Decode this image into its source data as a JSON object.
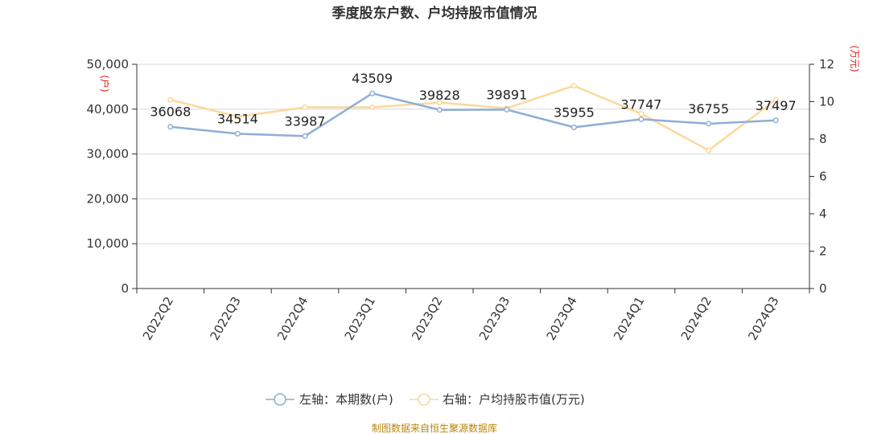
{
  "chart_data": {
    "type": "line",
    "title": "季度股东户数、户均持股市值情况",
    "categories": [
      "2022Q2",
      "2022Q3",
      "2022Q4",
      "2023Q1",
      "2023Q2",
      "2023Q3",
      "2023Q4",
      "2024Q1",
      "2024Q2",
      "2024Q3"
    ],
    "y_left": {
      "unit": "(户)",
      "ylim": [
        0,
        50000
      ],
      "ticks": [
        "0",
        "10,000",
        "20,000",
        "30,000",
        "40,000",
        "50,000"
      ],
      "tick_values": [
        0,
        10000,
        20000,
        30000,
        40000,
        50000
      ]
    },
    "y_right": {
      "unit": "(万元)",
      "ylim": [
        0,
        12
      ],
      "ticks": [
        "0",
        "2",
        "4",
        "6",
        "8",
        "10",
        "12"
      ],
      "tick_values": [
        0,
        2,
        4,
        6,
        8,
        10,
        12
      ]
    },
    "grid": true,
    "legend_placement": "bottom",
    "series": [
      {
        "name": "左轴：本期数(户)",
        "axis": "left",
        "color": "#8eaed6",
        "values": [
          36068,
          34514,
          33987,
          43509,
          39828,
          39891,
          35955,
          37747,
          36755,
          37497
        ],
        "labels": [
          "36068",
          "34514",
          "33987",
          "43509",
          "39828",
          "39891",
          "35955",
          "37747",
          "36755",
          "37497"
        ]
      },
      {
        "name": "右轴：户均持股市值(万元)",
        "axis": "right",
        "color": "#fcd89a",
        "values": [
          10.1,
          9.2,
          9.7,
          9.7,
          9.95,
          9.65,
          10.85,
          9.35,
          7.4,
          10.1
        ]
      }
    ],
    "source": "制图数据来自恒生聚源数据库"
  }
}
